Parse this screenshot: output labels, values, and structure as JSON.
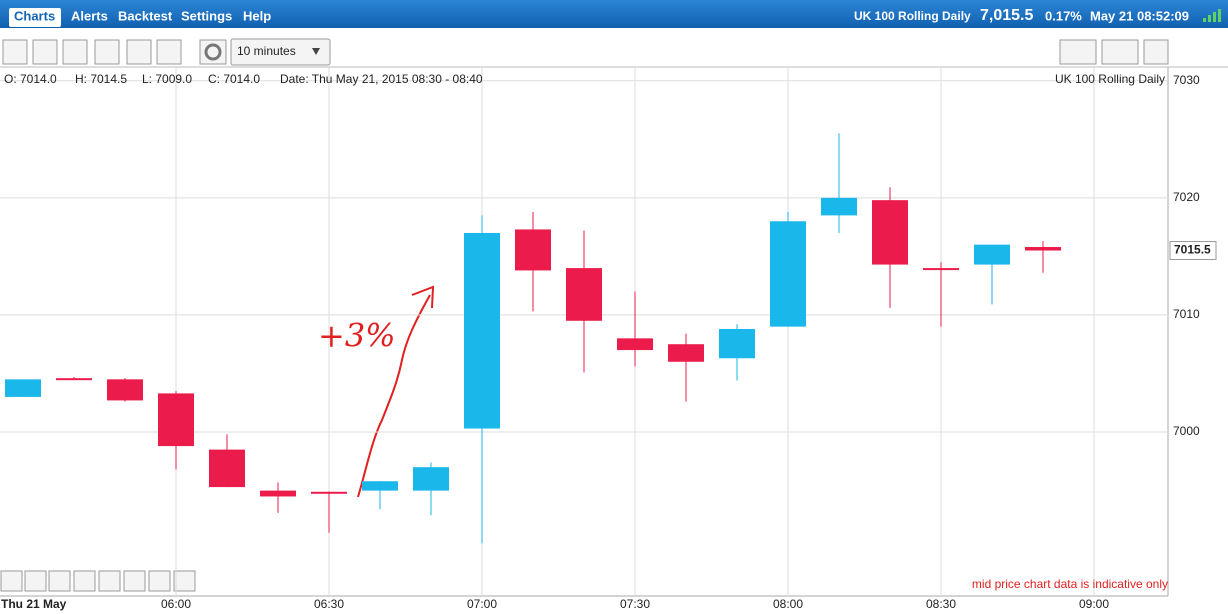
{
  "nav": {
    "tabs": [
      "Charts",
      "Alerts",
      "Backtest",
      "Settings",
      "Help"
    ],
    "instrument": "UK 100 Rolling Daily",
    "price": "7,015.5",
    "change": "0.17%",
    "time": "May 21 08:52:09"
  },
  "toolbar": {
    "interval": "10 minutes"
  },
  "chart_data": {
    "type": "candlestick",
    "title": "UK 100 Rolling Daily",
    "info": [
      "O: 7014.0",
      "H: 7014.5",
      "L: 7009.0",
      "C: 7014.0",
      "Date: Thu May 21, 2015 08:30 - 08:40"
    ],
    "categories": [
      "Thu 21 May",
      null,
      null,
      "06:00",
      null,
      null,
      "06:30",
      null,
      null,
      "07:00",
      null,
      null,
      "07:30",
      null,
      null,
      "08:00",
      null,
      null,
      "08:30",
      null,
      null,
      "09:00"
    ],
    "open": [
      7003.0,
      7004.6,
      7004.5,
      7003.3,
      6998.5,
      6995.0,
      6994.9,
      6995.0,
      6995.0,
      7000.3,
      7017.3,
      7014.0,
      7008.0,
      7007.5,
      7006.3,
      7009.0,
      7018.5,
      7019.8,
      7014.0,
      7014.3,
      7015.8,
      null
    ],
    "high": [
      7004.5,
      7004.7,
      7004.6,
      7003.5,
      6999.8,
      6995.7,
      6994.9,
      6995.8,
      6997.4,
      7018.5,
      7018.8,
      7017.2,
      7012.0,
      7008.4,
      7009.2,
      7018.8,
      7025.5,
      7020.9,
      7014.5,
      7016.0,
      7016.3,
      null
    ],
    "low": [
      7003.0,
      7004.5,
      7002.6,
      6996.8,
      6995.3,
      6993.1,
      6991.4,
      6993.4,
      6992.9,
      6990.5,
      7010.3,
      7005.1,
      7005.6,
      7002.6,
      7004.4,
      7009.0,
      7017.0,
      7010.6,
      7009.0,
      7010.9,
      7013.6,
      null
    ],
    "close": [
      7004.5,
      7004.6,
      7002.7,
      6998.8,
      6995.3,
      6994.5,
      6994.9,
      6995.8,
      6997.0,
      7017.0,
      7013.8,
      7009.5,
      7007.0,
      7006.0,
      7008.8,
      7018.0,
      7020.0,
      7014.3,
      7014.0,
      7016.0,
      7015.5,
      null
    ],
    "up_color": "#1ab7ea",
    "down_color": "#eb1c4b",
    "ylim": [
      6986,
      7031
    ],
    "yticks": [
      7000,
      7010,
      7020,
      7030
    ],
    "grid": true,
    "last_price": 7015.5,
    "annotations": [
      "+3%",
      "mid price chart data is indicative only"
    ]
  }
}
